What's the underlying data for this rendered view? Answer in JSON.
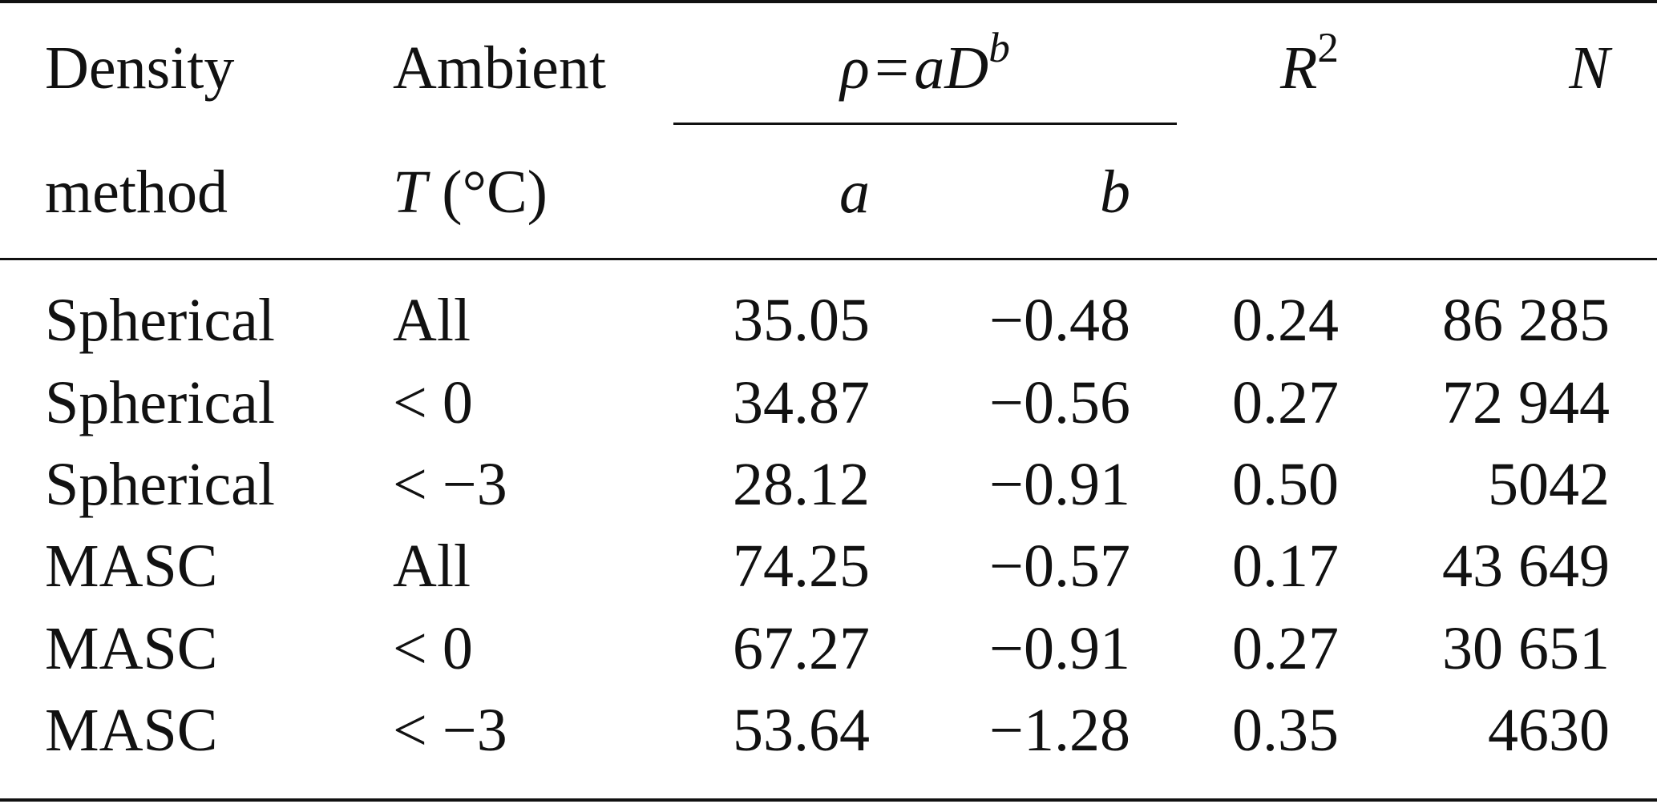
{
  "table": {
    "header": {
      "col1_line1": "Density",
      "col1_line2": "method",
      "col2_line1": "Ambient",
      "col2_line2_var": "T",
      "col2_line2_unit": "(°C)",
      "fit_formula_lhs": "ρ",
      "fit_formula_eq": "=",
      "fit_formula_a": "a",
      "fit_formula_D": "D",
      "fit_formula_exp": "b",
      "sub_a": "a",
      "sub_b": "b",
      "r2_base": "R",
      "r2_exp": "2",
      "n": "N"
    },
    "rows": [
      {
        "method": "Spherical",
        "temp": "All",
        "a": "35.05",
        "b": "−0.48",
        "r2": "0.24",
        "n": "86 285"
      },
      {
        "method": "Spherical",
        "temp": "< 0",
        "a": "34.87",
        "b": "−0.56",
        "r2": "0.27",
        "n": "72 944"
      },
      {
        "method": "Spherical",
        "temp": "< −3",
        "a": "28.12",
        "b": "−0.91",
        "r2": "0.50",
        "n": "5042"
      },
      {
        "method": "MASC",
        "temp": "All",
        "a": "74.25",
        "b": "−0.57",
        "r2": "0.17",
        "n": "43 649"
      },
      {
        "method": "MASC",
        "temp": "< 0",
        "a": "67.27",
        "b": "−0.91",
        "r2": "0.27",
        "n": "30 651"
      },
      {
        "method": "MASC",
        "temp": "< −3",
        "a": "53.64",
        "b": "−1.28",
        "r2": "0.35",
        "n": "4630"
      }
    ]
  }
}
